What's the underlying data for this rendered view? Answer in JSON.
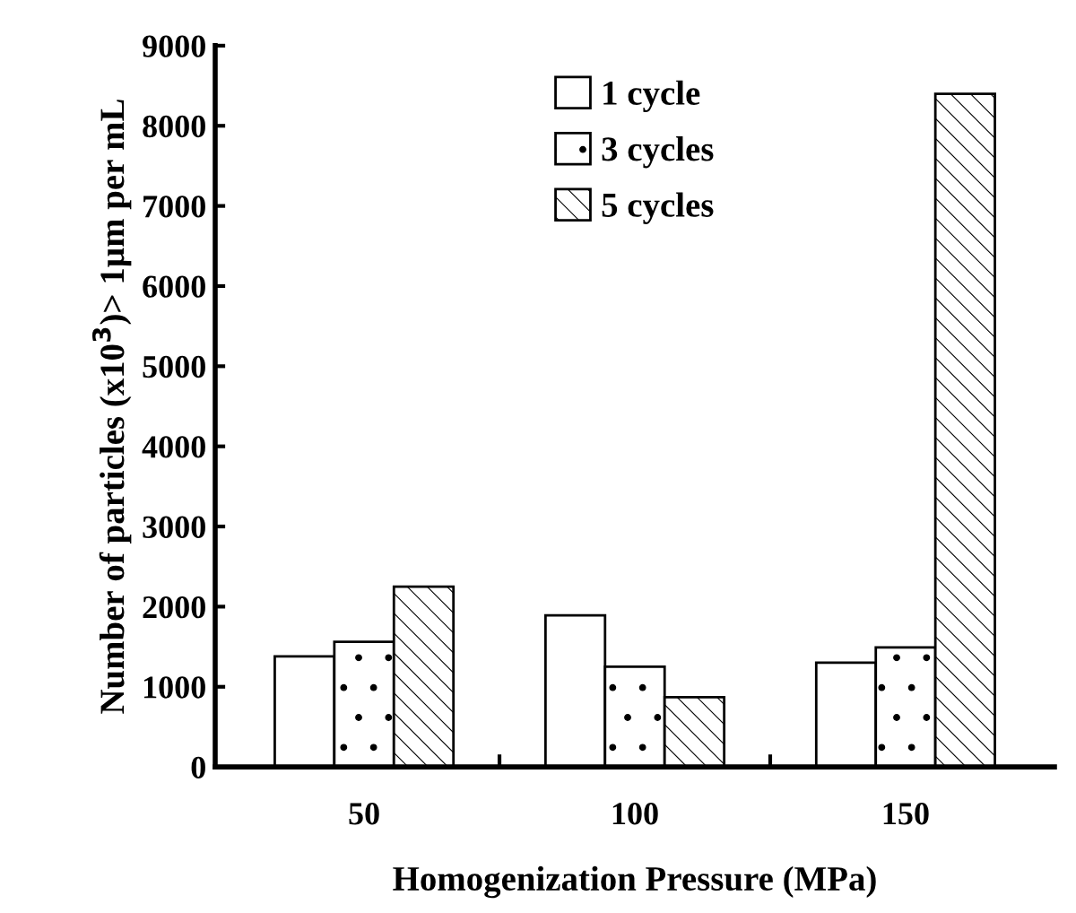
{
  "chart_data": {
    "type": "bar",
    "xlabel": "Homogenization Pressure (MPa)",
    "ylabel": "Number of particles (x10$^{3}$)> 1µm per mL",
    "categories": [
      "50",
      "100",
      "150"
    ],
    "series": [
      {
        "name": "1 cycle",
        "color": "#ffffff",
        "values": [
          1380,
          1890,
          1300
        ]
      },
      {
        "name": "3 cycles",
        "color": "#ffffff",
        "values": [
          1560,
          1250,
          1490
        ]
      },
      {
        "name": "5 cycles",
        "color": "#ffffff",
        "values": [
          2250,
          870,
          8400
        ]
      }
    ],
    "ylim": [
      0,
      9000
    ],
    "yticks": [
      0,
      1000,
      2000,
      3000,
      4000,
      5000,
      6000,
      7000,
      8000,
      9000
    ],
    "grid": false,
    "legend": "top"
  }
}
